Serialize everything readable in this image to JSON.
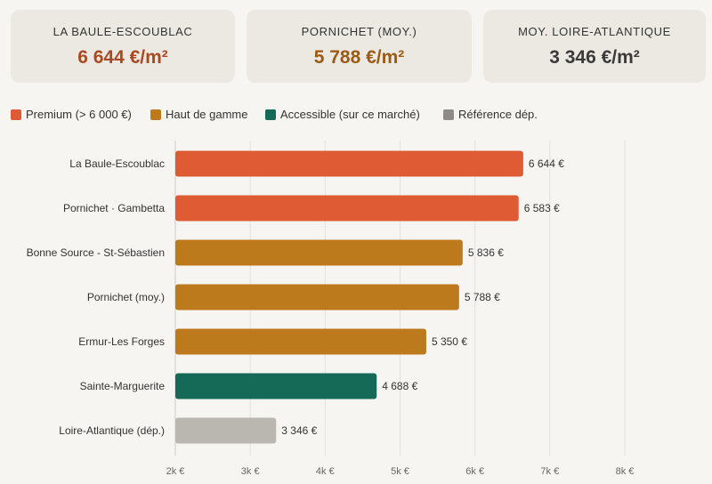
{
  "kpis": [
    {
      "label": "LA BAULE-ESCOUBLAC",
      "value": "6 644 €/m²",
      "color": "#a84a22"
    },
    {
      "label": "PORNICHET (MOY.)",
      "value": "5 788 €/m²",
      "color": "#9a5c14"
    },
    {
      "label": "MOY. LOIRE-ATLANTIQUE",
      "value": "3 346 €/m²",
      "color": "#3a3a3a"
    }
  ],
  "legend": [
    {
      "label": "Premium (> 6 000 €)",
      "color": "#de5b33"
    },
    {
      "label": "Haut de gamme",
      "color": "#bd7a1c"
    },
    {
      "label": "Accessible (sur ce marché)",
      "color": "#156a57"
    },
    {
      "label": "Référence dép.",
      "color": "#8f8c87"
    }
  ],
  "chart_data": {
    "type": "bar",
    "orientation": "horizontal",
    "categories": [
      "La Baule-Escoublac",
      "Pornichet · Gambetta",
      "Bonne Source - St-Sébastien",
      "Pornichet (moy.)",
      "Ermur-Les Forges",
      "Sainte-Marguerite",
      "Loire-Atlantique (dép.)"
    ],
    "values": [
      6644,
      6583,
      5836,
      5788,
      5350,
      4688,
      3346
    ],
    "value_labels": [
      "6 644 €",
      "6 583 €",
      "5 836 €",
      "5 788 €",
      "5 350 €",
      "4 688 €",
      "3 346 €"
    ],
    "bar_colors": [
      "#de5b33",
      "#de5b33",
      "#bd7a1c",
      "#bd7a1c",
      "#bd7a1c",
      "#156a57",
      "#bab7b0"
    ],
    "xlim": [
      2000,
      8300
    ],
    "ticks": [
      2000,
      3000,
      4000,
      5000,
      6000,
      7000,
      8000
    ],
    "tick_labels": [
      "2k €",
      "3k €",
      "4k €",
      "5k €",
      "6k €",
      "7k €",
      "8k €"
    ],
    "grid": true,
    "legend_position": "top-left"
  }
}
